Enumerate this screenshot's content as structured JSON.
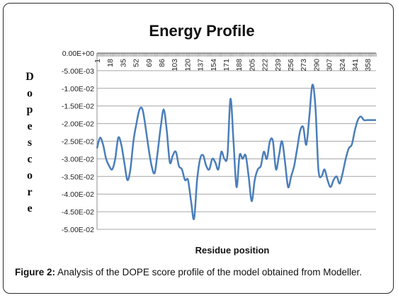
{
  "chart_data": {
    "type": "line",
    "title": "Energy Profile",
    "xlabel": "Residue position",
    "ylabel": "Dope score",
    "ylim": [
      -0.05,
      0
    ],
    "yticks": [
      "0.00E+00",
      "-5.00E-03",
      "-1.00E-02",
      "-1.50E-02",
      "-2.00E-02",
      "-2.50E-02",
      "-3.00E-02",
      "-3.50E-02",
      "-4.00E-02",
      "-4.50E-02",
      "-5.00E-02"
    ],
    "xticks": [
      "1",
      "18",
      "35",
      "52",
      "69",
      "86",
      "103",
      "120",
      "137",
      "154",
      "171",
      "188",
      "205",
      "222",
      "239",
      "256",
      "273",
      "290",
      "307",
      "324",
      "341",
      "358"
    ],
    "grid": "horizontal",
    "legend": "none",
    "line_color": "#4a7ebb",
    "series": [
      {
        "x": [
          1,
          5,
          9,
          13,
          17,
          21,
          25,
          29,
          33,
          37,
          41,
          45,
          49,
          53,
          57,
          61,
          65,
          69,
          73,
          77,
          81,
          85,
          89,
          93,
          97,
          101,
          105,
          109,
          113,
          117,
          121,
          125,
          129,
          133,
          137,
          141,
          145,
          149,
          153,
          157,
          161,
          165,
          169,
          173,
          177,
          181,
          185,
          189,
          193,
          197,
          201,
          205,
          209,
          213,
          217,
          221,
          225,
          229,
          233,
          237,
          241,
          245,
          249,
          253,
          257,
          261,
          265,
          269,
          273,
          277,
          281,
          285,
          289,
          293,
          297,
          301,
          305,
          309,
          313,
          317,
          321,
          325,
          329,
          333,
          337,
          341,
          345,
          349,
          353,
          357,
          361,
          365,
          369
        ],
        "values": [
          -0.027,
          -0.024,
          -0.026,
          -0.03,
          -0.032,
          -0.033,
          -0.03,
          -0.024,
          -0.026,
          -0.031,
          -0.036,
          -0.033,
          -0.025,
          -0.02,
          -0.016,
          -0.016,
          -0.021,
          -0.027,
          -0.032,
          -0.034,
          -0.028,
          -0.021,
          -0.016,
          -0.022,
          -0.031,
          -0.029,
          -0.028,
          -0.032,
          -0.033,
          -0.036,
          -0.036,
          -0.042,
          -0.047,
          -0.036,
          -0.03,
          -0.029,
          -0.032,
          -0.033,
          -0.03,
          -0.031,
          -0.033,
          -0.028,
          -0.03,
          -0.029,
          -0.013,
          -0.025,
          -0.038,
          -0.029,
          -0.03,
          -0.029,
          -0.035,
          -0.042,
          -0.036,
          -0.033,
          -0.032,
          -0.028,
          -0.03,
          -0.025,
          -0.025,
          -0.033,
          -0.029,
          -0.025,
          -0.031,
          -0.038,
          -0.035,
          -0.032,
          -0.027,
          -0.022,
          -0.021,
          -0.026,
          -0.018,
          -0.009,
          -0.015,
          -0.033,
          -0.035,
          -0.033,
          -0.036,
          -0.038,
          -0.036,
          -0.035,
          -0.037,
          -0.034,
          -0.03,
          -0.027,
          -0.026,
          -0.022,
          -0.019,
          -0.018,
          -0.019,
          -0.019,
          -0.019,
          -0.019,
          -0.019
        ]
      }
    ]
  },
  "caption": {
    "label": "Figure 2:",
    "text": " Analysis of the DOPE score profile of the model obtained from Modeller."
  }
}
